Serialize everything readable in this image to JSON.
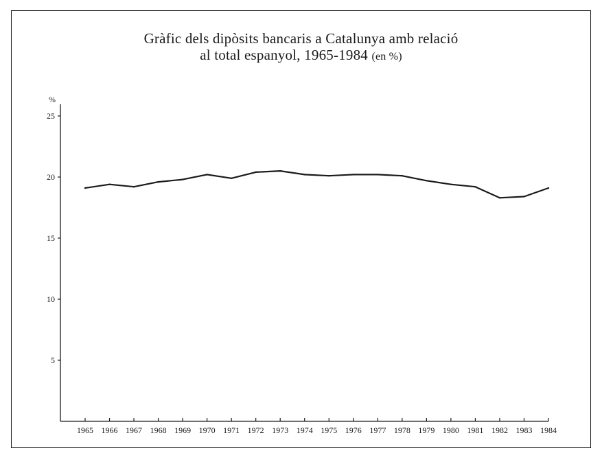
{
  "chart_data": {
    "type": "line",
    "title_line1": "Gràfic dels dipòsits bancaris a Catalunya amb relació",
    "title_line2": "al total espanyol, 1965-1984",
    "title_unit": "(en %)",
    "ylabel": "%",
    "xlabel": "",
    "ylim": [
      0,
      26
    ],
    "yticks": [
      5,
      10,
      15,
      20,
      25
    ],
    "grid": false,
    "legend": "none",
    "line_color": "#1a1a1a",
    "x": [
      "1965",
      "1966",
      "1967",
      "1968",
      "1969",
      "1970",
      "1971",
      "1972",
      "1973",
      "1974",
      "1975",
      "1976",
      "1977",
      "1978",
      "1979",
      "1980",
      "1981",
      "1982",
      "1983",
      "1984"
    ],
    "series": [
      {
        "values": [
          19.1,
          19.4,
          19.2,
          19.6,
          19.8,
          20.2,
          19.9,
          20.4,
          20.5,
          20.2,
          20.1,
          20.2,
          20.2,
          20.1,
          19.7,
          19.4,
          19.2,
          18.3,
          18.4,
          19.1
        ]
      }
    ]
  }
}
